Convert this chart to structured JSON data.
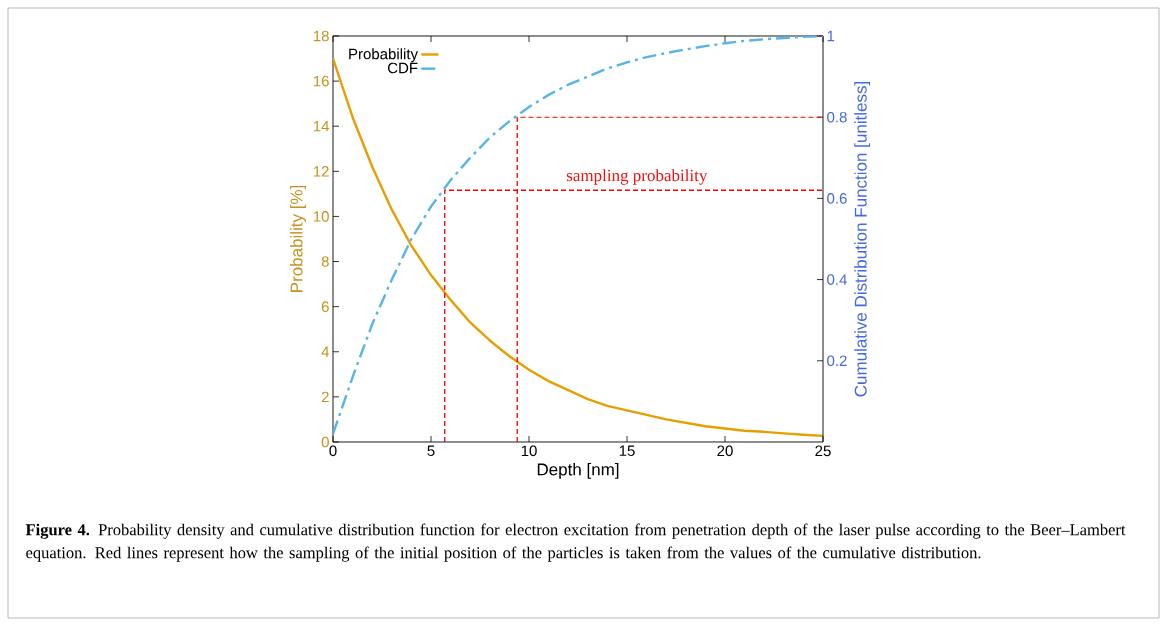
{
  "chart_data": {
    "type": "line",
    "xlabel": "Depth [nm]",
    "ylabel": "Probability [%]",
    "y2label": "Cumulative Distribution Function [unitless]",
    "xlim": [
      0,
      25
    ],
    "xticks": [
      0,
      5,
      10,
      15,
      20,
      25
    ],
    "ylim": [
      0,
      18
    ],
    "yticks": [
      0,
      2,
      4,
      6,
      8,
      10,
      12,
      14,
      16,
      18
    ],
    "y2lim": [
      0,
      1
    ],
    "y2ticks": [
      0.2,
      0.4,
      0.6,
      0.8,
      1
    ],
    "legend": "top left",
    "series": [
      {
        "name": "Probability",
        "color": "#e69f00",
        "line_style": "solid",
        "x": [
          0,
          1,
          2,
          3,
          4,
          5,
          6,
          7,
          8,
          9,
          10,
          11,
          12,
          13,
          14,
          15,
          16,
          17,
          18,
          19,
          20,
          21,
          22,
          23,
          24,
          25
        ],
        "values": [
          17,
          14.4,
          12.2,
          10.3,
          8.7,
          7.4,
          6.3,
          5.3,
          4.5,
          3.8,
          3.2,
          2.7,
          2.3,
          1.9,
          1.6,
          1.4,
          1.2,
          1.0,
          0.85,
          0.7,
          0.6,
          0.5,
          0.45,
          0.38,
          0.32,
          0.27
        ]
      },
      {
        "name": "CDF",
        "color": "#56b4e9",
        "line_style": "dashed",
        "axis": "y2",
        "x": [
          0,
          1,
          2,
          3,
          4,
          5,
          6,
          7,
          8,
          9,
          10,
          11,
          12,
          13,
          14,
          15,
          16,
          17,
          18,
          19,
          20,
          21,
          22,
          23,
          24,
          25
        ],
        "values": [
          0.02,
          0.16,
          0.29,
          0.4,
          0.5,
          0.58,
          0.645,
          0.7,
          0.75,
          0.79,
          0.825,
          0.855,
          0.88,
          0.9,
          0.92,
          0.935,
          0.948,
          0.958,
          0.967,
          0.975,
          0.982,
          0.988,
          0.992,
          0.995,
          0.998,
          1.0
        ]
      },
      {
        "color": "#ff0000",
        "line_style": "dashed",
        "axis": "y2",
        "x": [
          5.7,
          5.7,
          25
        ],
        "values": [
          0,
          0.62,
          0.62
        ]
      },
      {
        "color": "#ff0000",
        "line_style": "dashed",
        "axis": "y2",
        "x": [
          9.4,
          9.4,
          25
        ],
        "values": [
          0,
          0.8,
          0.8
        ]
      }
    ],
    "annotations": [
      "sampling probability",
      "**Figure 4.** Probability density and cumulative distribution function for electron excitation from penetration depth of the laser pulse according to the Beer–Lambert equation. Red lines represent how the sampling of the initial position of the particles is taken from the values of the cumulative distribution."
    ]
  }
}
